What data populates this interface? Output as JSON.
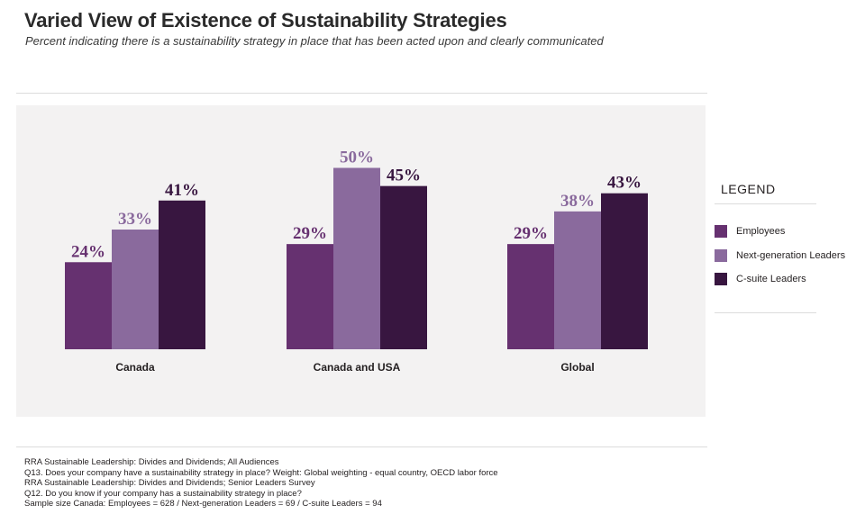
{
  "title": "Varied View of Existence of Sustainability Strategies",
  "subtitle": "Percent indicating there is a sustainability strategy in place that has been acted upon and clearly communicated",
  "legend": {
    "title": "LEGEND",
    "items": [
      {
        "label": "Employees",
        "color": "#663170"
      },
      {
        "label": "Next-generation Leaders",
        "color": "#8a6a9d"
      },
      {
        "label": "C-suite Leaders",
        "color": "#381640"
      }
    ]
  },
  "chart_data": {
    "type": "bar",
    "title": "Varied View of Existence of Sustainability Strategies",
    "categories": [
      "Canada",
      "Canada and USA",
      "Global"
    ],
    "series": [
      {
        "name": "Employees",
        "values": [
          24,
          29,
          29
        ],
        "labels": [
          "24%",
          "29%",
          "29%"
        ],
        "color": "#663170",
        "label_color": "#663170"
      },
      {
        "name": "Next-generation Leaders",
        "values": [
          33,
          50,
          38
        ],
        "labels": [
          "33%",
          "50%",
          "38%"
        ],
        "color": "#8a6a9d",
        "label_color": "#8a6a9d"
      },
      {
        "name": "C-suite Leaders",
        "values": [
          41,
          45,
          43
        ],
        "labels": [
          "41%",
          "45%",
          "43%"
        ],
        "color": "#381640",
        "label_color": "#381640"
      }
    ],
    "ylim": [
      0,
      50
    ],
    "xlabel": "",
    "ylabel": "",
    "grid": false,
    "legend_position": "right"
  },
  "notes": [
    "RRA Sustainable Leadership: Divides and Dividends; All Audiences",
    "Q13. Does your company have a sustainability strategy in place? Weight: Global weighting - equal country, OECD labor force",
    "RRA Sustainable Leadership: Divides and Dividends; Senior Leaders Survey",
    "Q12. Do you know if your company has a sustainability strategy in place?",
    "Sample size Canada: Employees = 628 / Next-generation Leaders = 69 / C-suite Leaders = 94"
  ]
}
